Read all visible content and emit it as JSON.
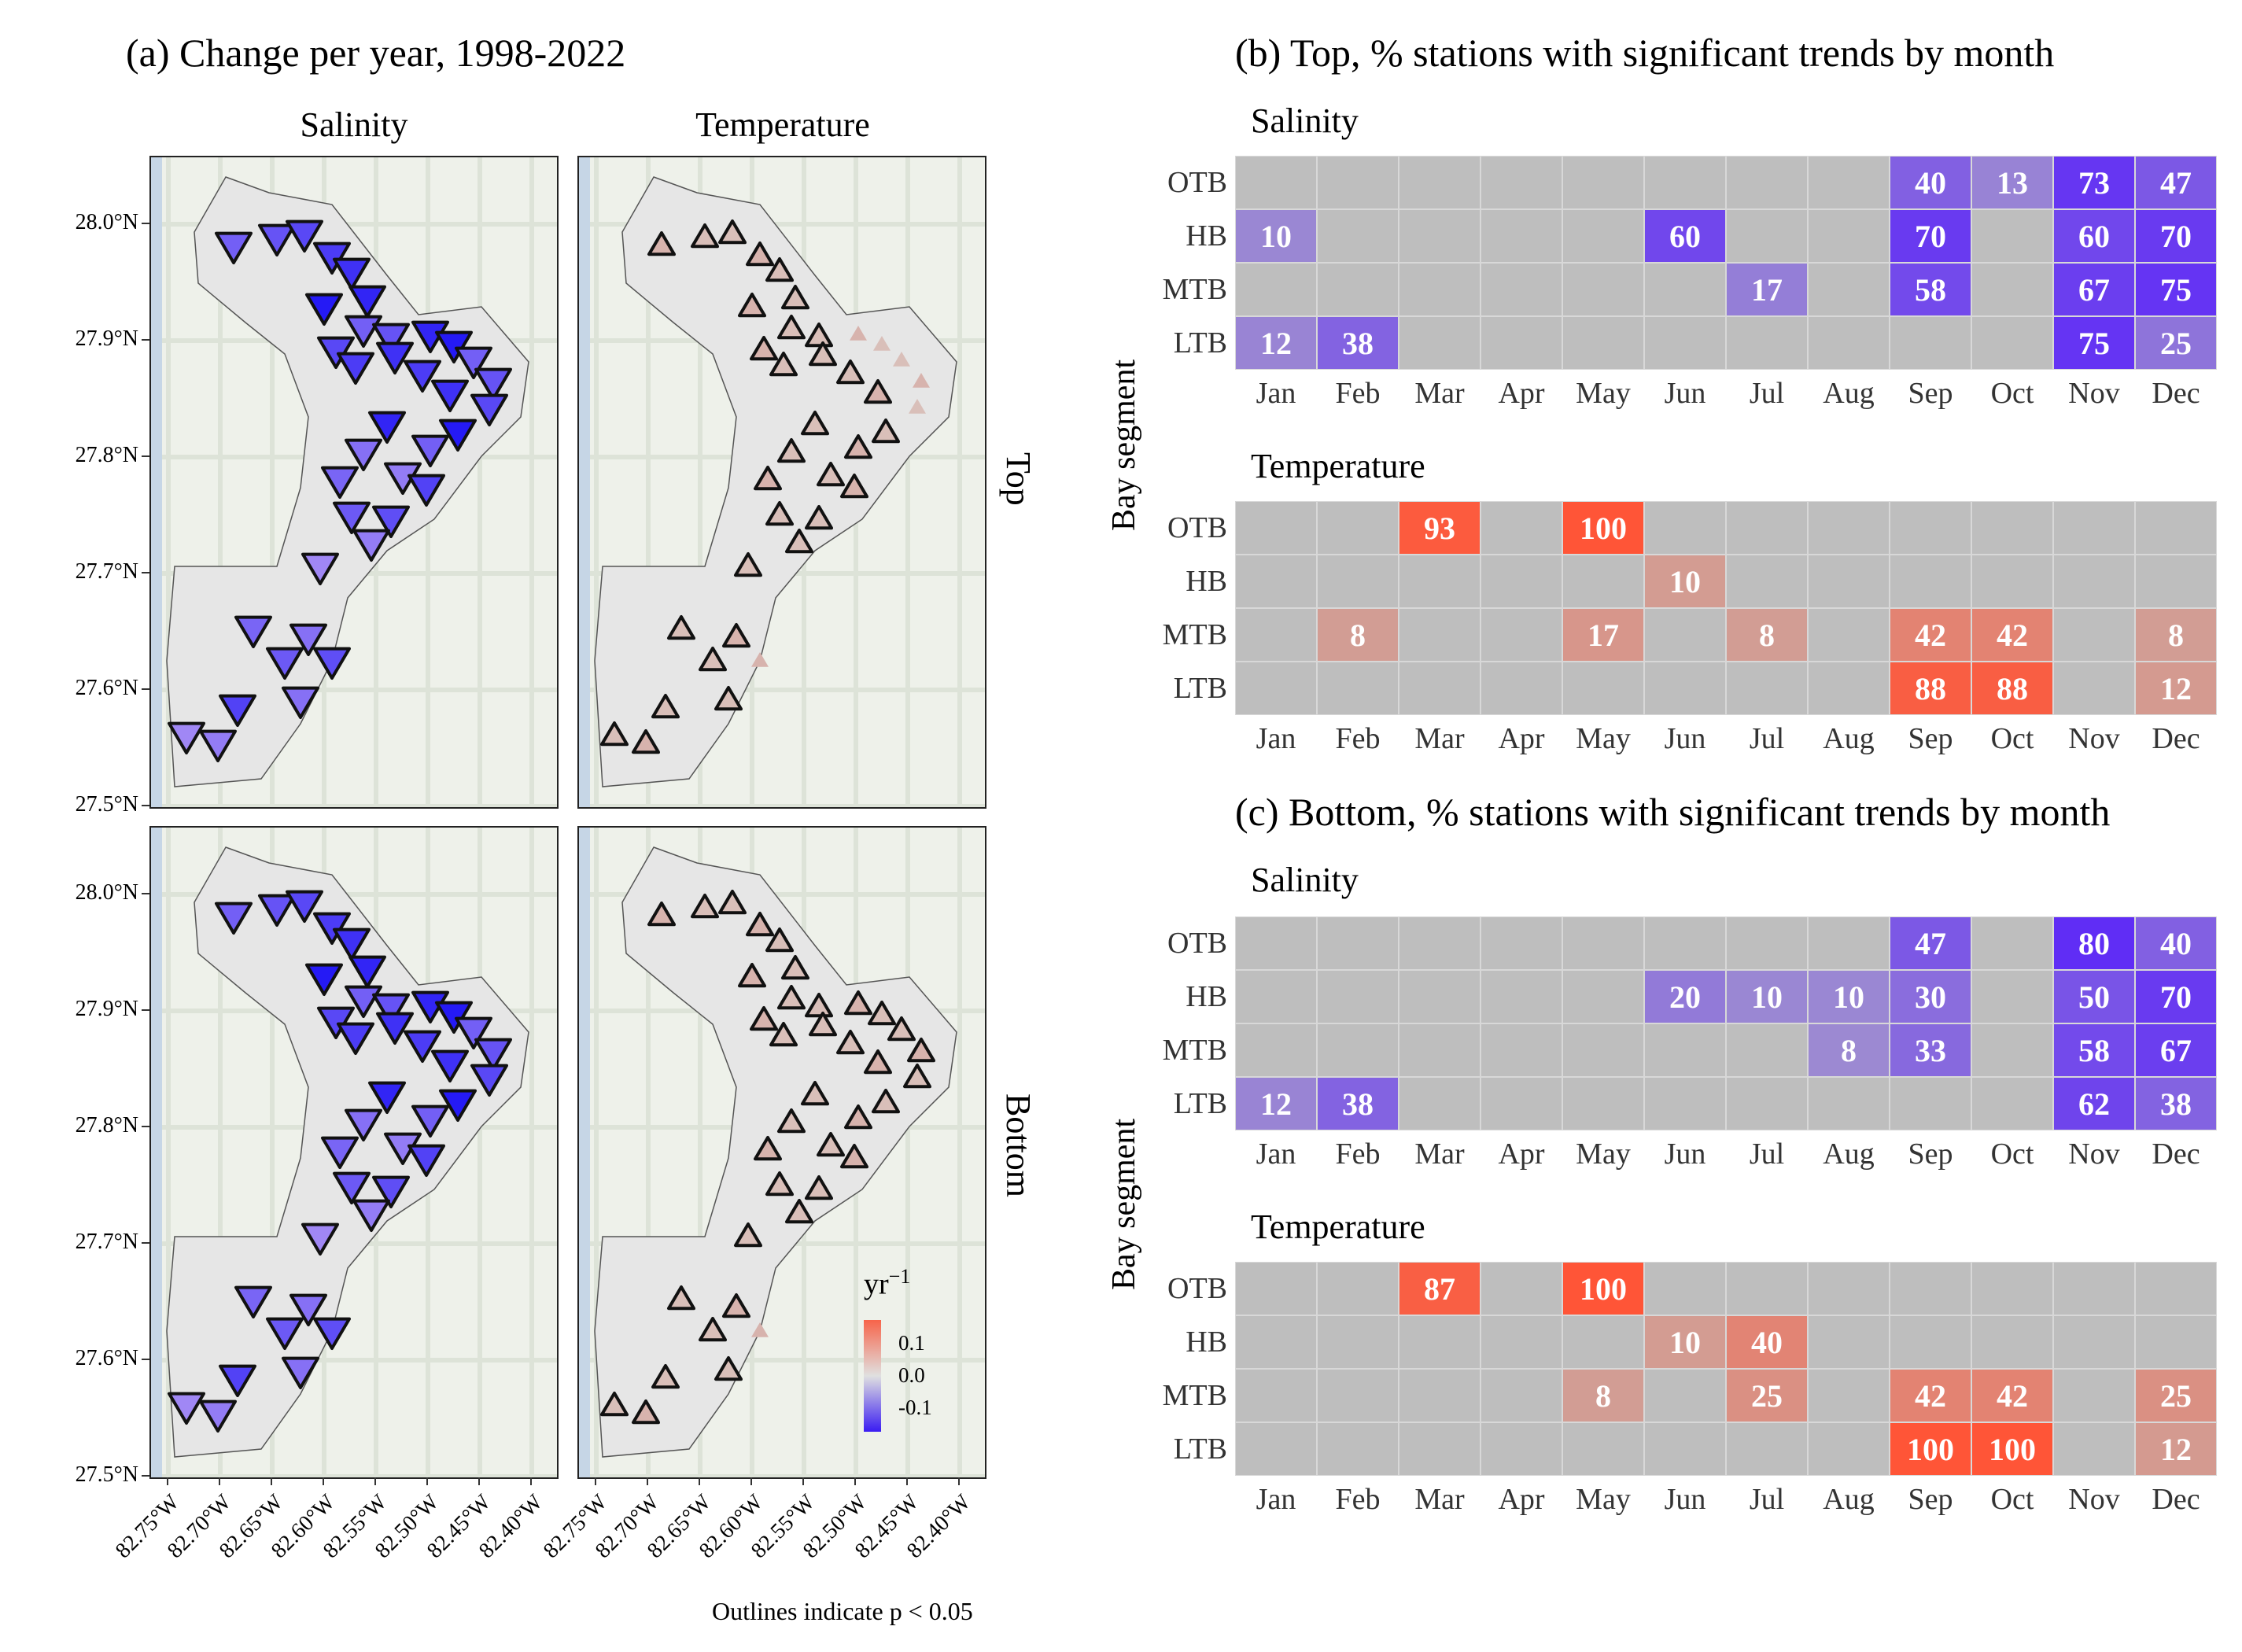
{
  "panel_a": {
    "title": "(a) Change per year, 1998-2022",
    "columns": [
      "Salinity",
      "Temperature"
    ],
    "rows": [
      "Top",
      "Bottom"
    ],
    "y_ticks": [
      "28.0°N",
      "27.9°N",
      "27.8°N",
      "27.7°N",
      "27.6°N",
      "27.5°N"
    ],
    "x_ticks": [
      "82.75°W",
      "82.70°W",
      "82.65°W",
      "82.60°W",
      "82.55°W",
      "82.50°W",
      "82.45°W",
      "82.40°W"
    ],
    "legend": {
      "title_base": "yr",
      "title_exp": "−1",
      "labels": [
        "0.1",
        "0.0",
        "-0.1"
      ],
      "colors": {
        "high": "#f7644a",
        "mid": "#e0e0e0",
        "low": "#3a1cf2"
      }
    },
    "note": "Outlines indicate p < 0.05"
  },
  "panel_b": {
    "title": "(b) Top, % stations with significant trends by month"
  },
  "panel_c": {
    "title": "(c) Bottom, % stations with significant trends by month"
  },
  "heatmap_axis": {
    "ylabel": "Bay segment",
    "segments": [
      "OTB",
      "HB",
      "MTB",
      "LTB"
    ],
    "months": [
      "Jan",
      "Feb",
      "Mar",
      "Apr",
      "May",
      "Jun",
      "Jul",
      "Aug",
      "Sep",
      "Oct",
      "Nov",
      "Dec"
    ]
  },
  "chart_data": [
    {
      "type": "heatmap",
      "title": "(b) Top, % stations with significant trends by month",
      "subtitle": "Salinity",
      "direction": "decrease",
      "rows": [
        "OTB",
        "HB",
        "MTB",
        "LTB"
      ],
      "columns": [
        "Jan",
        "Feb",
        "Mar",
        "Apr",
        "May",
        "Jun",
        "Jul",
        "Aug",
        "Sep",
        "Oct",
        "Nov",
        "Dec"
      ],
      "values": [
        [
          null,
          null,
          null,
          null,
          null,
          null,
          null,
          null,
          40,
          13,
          73,
          47
        ],
        [
          10,
          null,
          null,
          null,
          null,
          60,
          null,
          null,
          70,
          null,
          60,
          70
        ],
        [
          null,
          null,
          null,
          null,
          null,
          null,
          17,
          null,
          58,
          null,
          67,
          75
        ],
        [
          12,
          38,
          null,
          null,
          null,
          null,
          null,
          null,
          null,
          null,
          75,
          25
        ]
      ]
    },
    {
      "type": "heatmap",
      "title": "(b) Top, % stations with significant trends by month",
      "subtitle": "Temperature",
      "direction": "increase",
      "rows": [
        "OTB",
        "HB",
        "MTB",
        "LTB"
      ],
      "columns": [
        "Jan",
        "Feb",
        "Mar",
        "Apr",
        "May",
        "Jun",
        "Jul",
        "Aug",
        "Sep",
        "Oct",
        "Nov",
        "Dec"
      ],
      "values": [
        [
          null,
          null,
          93,
          null,
          100,
          null,
          null,
          null,
          null,
          null,
          null,
          null
        ],
        [
          null,
          null,
          null,
          null,
          null,
          10,
          null,
          null,
          null,
          null,
          null,
          null
        ],
        [
          null,
          8,
          null,
          null,
          17,
          null,
          8,
          null,
          42,
          42,
          null,
          8
        ],
        [
          null,
          null,
          null,
          null,
          null,
          null,
          null,
          null,
          88,
          88,
          null,
          12
        ]
      ]
    },
    {
      "type": "heatmap",
      "title": "(c) Bottom, % stations with significant trends by month",
      "subtitle": "Salinity",
      "direction": "decrease",
      "rows": [
        "OTB",
        "HB",
        "MTB",
        "LTB"
      ],
      "columns": [
        "Jan",
        "Feb",
        "Mar",
        "Apr",
        "May",
        "Jun",
        "Jul",
        "Aug",
        "Sep",
        "Oct",
        "Nov",
        "Dec"
      ],
      "values": [
        [
          null,
          null,
          null,
          null,
          null,
          null,
          null,
          null,
          47,
          null,
          80,
          40
        ],
        [
          null,
          null,
          null,
          null,
          null,
          20,
          10,
          10,
          30,
          null,
          50,
          70
        ],
        [
          null,
          null,
          null,
          null,
          null,
          null,
          null,
          8,
          33,
          null,
          58,
          67
        ],
        [
          12,
          38,
          null,
          null,
          null,
          null,
          null,
          null,
          null,
          null,
          62,
          38
        ]
      ]
    },
    {
      "type": "heatmap",
      "title": "(c) Bottom, % stations with significant trends by month",
      "subtitle": "Temperature",
      "direction": "increase",
      "rows": [
        "OTB",
        "HB",
        "MTB",
        "LTB"
      ],
      "columns": [
        "Jan",
        "Feb",
        "Mar",
        "Apr",
        "May",
        "Jun",
        "Jul",
        "Aug",
        "Sep",
        "Oct",
        "Nov",
        "Dec"
      ],
      "values": [
        [
          null,
          null,
          87,
          null,
          100,
          null,
          null,
          null,
          null,
          null,
          null,
          null
        ],
        [
          null,
          null,
          null,
          null,
          null,
          10,
          40,
          null,
          null,
          null,
          null,
          null
        ],
        [
          null,
          null,
          null,
          null,
          8,
          null,
          25,
          null,
          42,
          42,
          null,
          25
        ],
        [
          null,
          null,
          null,
          null,
          null,
          null,
          null,
          null,
          100,
          100,
          null,
          12
        ]
      ]
    }
  ]
}
